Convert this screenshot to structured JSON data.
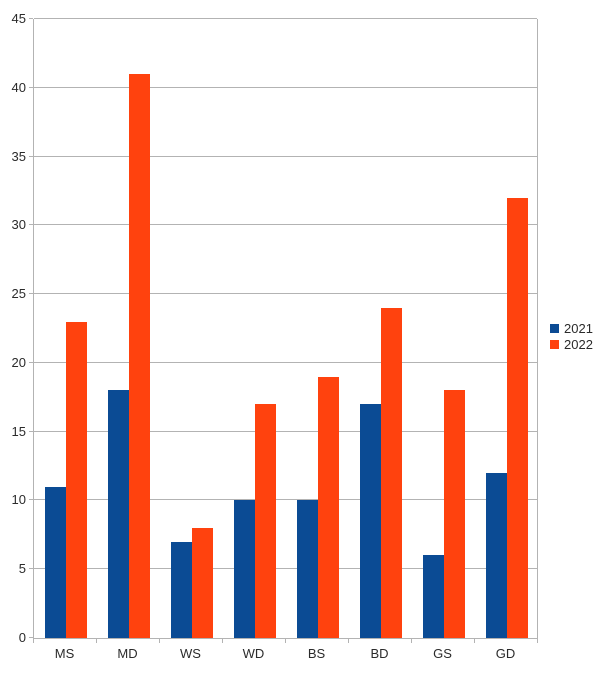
{
  "chart_data": {
    "type": "bar",
    "title": "",
    "xlabel": "",
    "ylabel": "",
    "categories": [
      "MS",
      "MD",
      "WS",
      "WD",
      "BS",
      "BD",
      "GS",
      "GD"
    ],
    "series": [
      {
        "name": "2021",
        "color": "#0b4b94",
        "values": [
          11,
          18,
          7,
          10,
          10,
          17,
          6,
          12
        ]
      },
      {
        "name": "2022",
        "color": "#ff420e",
        "values": [
          23,
          41,
          8,
          17,
          19,
          24,
          18,
          32
        ]
      }
    ],
    "y_axis": {
      "min": 0,
      "max": 45,
      "tick_step": 5,
      "tick_labels": [
        "0",
        "5",
        "10",
        "15",
        "20",
        "25",
        "30",
        "35",
        "40",
        "45"
      ]
    },
    "grid": true,
    "legend_position": "right",
    "colors": {
      "background": "#ffffff",
      "gridline": "#b3b3b3",
      "axis": "#b3b3b3",
      "text": "#2b2b2b"
    }
  }
}
